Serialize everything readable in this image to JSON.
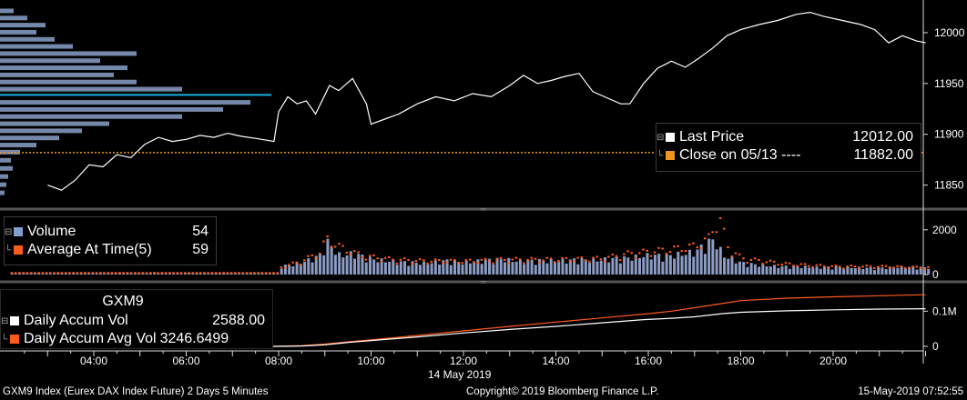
{
  "chart_data": [
    {
      "type": "line",
      "panel": "price",
      "series": [
        {
          "name": "Last Price",
          "value": "12012.00",
          "color": "#ffffff"
        },
        {
          "name": "Close on 05/13 ----",
          "value": "11882.00",
          "color": "#f0961e"
        }
      ],
      "close_level": 11882,
      "ylim": [
        11830,
        12025
      ],
      "yticks": [
        "11850",
        "11900",
        "11950",
        "12000"
      ],
      "price_series": [
        [
          3.0,
          11850
        ],
        [
          3.3,
          11845
        ],
        [
          3.6,
          11855
        ],
        [
          3.9,
          11870
        ],
        [
          4.2,
          11868
        ],
        [
          4.5,
          11880
        ],
        [
          4.8,
          11877
        ],
        [
          5.1,
          11890
        ],
        [
          5.4,
          11897
        ],
        [
          5.7,
          11893
        ],
        [
          6.0,
          11895
        ],
        [
          6.3,
          11899
        ],
        [
          6.6,
          11897
        ],
        [
          6.9,
          11901
        ],
        [
          7.2,
          11898
        ],
        [
          7.5,
          11896
        ],
        [
          7.9,
          11893
        ],
        [
          8.0,
          11922
        ],
        [
          8.2,
          11937
        ],
        [
          8.4,
          11930
        ],
        [
          8.6,
          11933
        ],
        [
          8.8,
          11920
        ],
        [
          9.1,
          11948
        ],
        [
          9.3,
          11943
        ],
        [
          9.6,
          11955
        ],
        [
          9.9,
          11930
        ],
        [
          10.0,
          11910
        ],
        [
          10.3,
          11915
        ],
        [
          10.6,
          11920
        ],
        [
          11.0,
          11930
        ],
        [
          11.4,
          11937
        ],
        [
          11.8,
          11933
        ],
        [
          12.2,
          11940
        ],
        [
          12.6,
          11937
        ],
        [
          13.0,
          11948
        ],
        [
          13.3,
          11958
        ],
        [
          13.6,
          11950
        ],
        [
          13.9,
          11953
        ],
        [
          14.2,
          11957
        ],
        [
          14.5,
          11960
        ],
        [
          14.8,
          11942
        ],
        [
          15.1,
          11936
        ],
        [
          15.4,
          11930
        ],
        [
          15.6,
          11930
        ],
        [
          15.9,
          11950
        ],
        [
          16.2,
          11965
        ],
        [
          16.5,
          11972
        ],
        [
          16.8,
          11966
        ],
        [
          17.1,
          11975
        ],
        [
          17.4,
          11985
        ],
        [
          17.7,
          11997
        ],
        [
          18.0,
          12003
        ],
        [
          18.4,
          12008
        ],
        [
          18.8,
          12012
        ],
        [
          19.2,
          12018
        ],
        [
          19.5,
          12020
        ],
        [
          19.8,
          12016
        ],
        [
          20.2,
          12012
        ],
        [
          20.6,
          12008
        ],
        [
          20.9,
          12003
        ],
        [
          21.2,
          11990
        ],
        [
          21.5,
          11997
        ],
        [
          21.8,
          11992
        ],
        [
          22.0,
          11990
        ]
      ],
      "volume_profile": [
        [
          11842,
          5
        ],
        [
          11850,
          7
        ],
        [
          11858,
          9
        ],
        [
          11866,
          14
        ],
        [
          11874,
          12
        ],
        [
          11882,
          22
        ],
        [
          11889,
          40
        ],
        [
          11896,
          65
        ],
        [
          11903,
          90
        ],
        [
          11910,
          120
        ],
        [
          11917,
          200
        ],
        [
          11924,
          245
        ],
        [
          11931,
          275
        ],
        [
          11937,
          298
        ],
        [
          11944,
          200
        ],
        [
          11951,
          150
        ],
        [
          11958,
          125
        ],
        [
          11965,
          140
        ],
        [
          11972,
          110
        ],
        [
          11979,
          150
        ],
        [
          11986,
          80
        ],
        [
          11993,
          60
        ],
        [
          12000,
          40
        ],
        [
          12007,
          50
        ],
        [
          12014,
          30
        ],
        [
          12021,
          15
        ]
      ],
      "profile_max_level": 11937
    },
    {
      "type": "bar",
      "panel": "volume",
      "series": [
        {
          "name": "Volume",
          "value": "54",
          "color": "#7f9fd0"
        },
        {
          "name": "Average At Time(5)",
          "value": "59",
          "color": "#ff5a1e"
        }
      ],
      "ylim": [
        0,
        2600
      ],
      "yticks": [
        "0",
        "2000"
      ],
      "volume_peaks": [
        [
          8.0,
          350
        ],
        [
          8.3,
          420
        ],
        [
          8.6,
          600
        ],
        [
          8.9,
          850
        ],
        [
          9.0,
          1450
        ],
        [
          9.1,
          1200
        ],
        [
          9.3,
          800
        ],
        [
          9.6,
          900
        ],
        [
          10.0,
          650
        ],
        [
          10.4,
          560
        ],
        [
          10.8,
          520
        ],
        [
          11.2,
          480
        ],
        [
          11.6,
          600
        ],
        [
          12.0,
          500
        ],
        [
          12.4,
          600
        ],
        [
          12.8,
          650
        ],
        [
          13.2,
          560
        ],
        [
          13.6,
          600
        ],
        [
          14.0,
          560
        ],
        [
          14.4,
          640
        ],
        [
          14.8,
          600
        ],
        [
          15.2,
          680
        ],
        [
          15.6,
          720
        ],
        [
          16.0,
          820
        ],
        [
          16.4,
          800
        ],
        [
          16.8,
          900
        ],
        [
          17.0,
          980
        ],
        [
          17.2,
          1300
        ],
        [
          17.4,
          1500
        ],
        [
          17.6,
          800
        ],
        [
          18.0,
          500
        ],
        [
          18.4,
          400
        ],
        [
          18.8,
          350
        ],
        [
          19.2,
          350
        ],
        [
          19.6,
          300
        ],
        [
          20.0,
          320
        ],
        [
          20.4,
          300
        ],
        [
          20.8,
          280
        ],
        [
          21.2,
          300
        ],
        [
          21.6,
          320
        ],
        [
          22.0,
          300
        ]
      ],
      "avg_peaks": [
        [
          8.0,
          300
        ],
        [
          8.5,
          600
        ],
        [
          8.9,
          1000
        ],
        [
          9.0,
          1600
        ],
        [
          9.3,
          1200
        ],
        [
          9.8,
          800
        ],
        [
          10.5,
          650
        ],
        [
          11.0,
          600
        ],
        [
          12.0,
          580
        ],
        [
          13.0,
          650
        ],
        [
          14.0,
          650
        ],
        [
          15.0,
          700
        ],
        [
          15.5,
          900
        ],
        [
          16.0,
          1000
        ],
        [
          16.5,
          1100
        ],
        [
          17.0,
          1250
        ],
        [
          17.3,
          1600
        ],
        [
          17.5,
          2600
        ],
        [
          17.7,
          1200
        ],
        [
          18.0,
          700
        ],
        [
          19.0,
          450
        ],
        [
          20.0,
          350
        ],
        [
          21.0,
          350
        ],
        [
          22.0,
          300
        ]
      ]
    },
    {
      "type": "line",
      "panel": "accumulated",
      "title": "GXM9",
      "series": [
        {
          "name": "Daily Accum Vol",
          "value": "2588.00",
          "color": "#ffffff"
        },
        {
          "name": "Daily Accum Avg Vol",
          "value": "3246.6499",
          "color": "#ff5a1e"
        }
      ],
      "ylim": [
        0,
        150000
      ],
      "yticks": [
        "0",
        "0.1M"
      ],
      "accum_vol": [
        [
          8.0,
          0
        ],
        [
          8.5,
          1000
        ],
        [
          9.0,
          4500
        ],
        [
          9.5,
          11000
        ],
        [
          10.0,
          16500
        ],
        [
          11.0,
          27000
        ],
        [
          12.0,
          38000
        ],
        [
          13.0,
          48000
        ],
        [
          14.0,
          57000
        ],
        [
          15.0,
          67000
        ],
        [
          15.9,
          76000
        ],
        [
          16.5,
          80000
        ],
        [
          17.0,
          84000
        ],
        [
          17.6,
          93000
        ],
        [
          18.0,
          97000
        ],
        [
          19.0,
          101000
        ],
        [
          20.0,
          104000
        ],
        [
          21.0,
          106000
        ],
        [
          22.0,
          107000
        ]
      ],
      "accum_avg_vol": [
        [
          7.9,
          0
        ],
        [
          8.5,
          2000
        ],
        [
          9.0,
          6500
        ],
        [
          9.5,
          13000
        ],
        [
          10.0,
          18500
        ],
        [
          11.0,
          31000
        ],
        [
          12.0,
          44000
        ],
        [
          13.0,
          57000
        ],
        [
          14.0,
          69000
        ],
        [
          15.0,
          81000
        ],
        [
          16.0,
          93000
        ],
        [
          16.5,
          100000
        ],
        [
          17.0,
          110000
        ],
        [
          17.5,
          120000
        ],
        [
          18.0,
          130000
        ],
        [
          19.0,
          137000
        ],
        [
          20.0,
          141000
        ],
        [
          21.0,
          144000
        ],
        [
          22.0,
          147000
        ]
      ]
    }
  ],
  "x_axis": {
    "tick_labels": [
      "04:00",
      "06:00",
      "08:00",
      "10:00",
      "12:00",
      "14:00",
      "16:00",
      "18:00",
      "20:00"
    ],
    "tick_hours": [
      4,
      6,
      8,
      10,
      12,
      14,
      16,
      18,
      20
    ],
    "date_label": "14 May 2019"
  },
  "footer": {
    "left": "GXM9 Index (Eurex DAX Index Future) 2 Days 5 Minutes",
    "center": "Copyright© 2019 Bloomberg Finance L.P.",
    "right": "15-May-2019 07:52:55"
  },
  "colors": {
    "background": "#000000",
    "price_line": "#ffffff",
    "close_line": "#f0961e",
    "profile": "#8aa0c8",
    "profile_max": "#19b0e0",
    "volume_bar": "#8c9cc4",
    "avg_dot": "#ff5a1e",
    "accum_avg": "#ff5a1e",
    "accum": "#ffffff",
    "axis_text": "#ffffff",
    "divider": "#555555"
  }
}
